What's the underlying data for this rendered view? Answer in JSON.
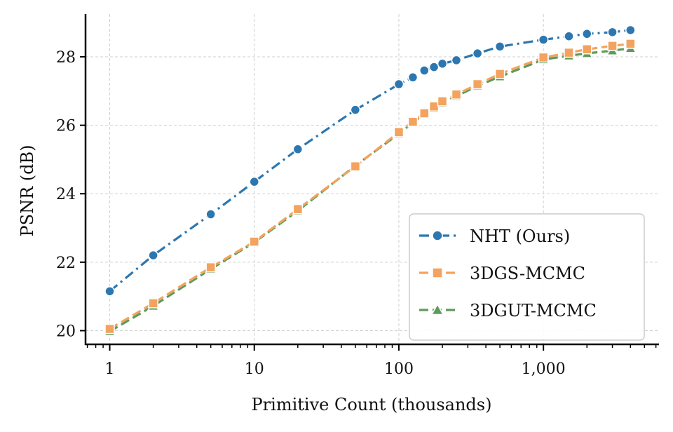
{
  "chart_data": {
    "type": "line",
    "title": "",
    "xlabel": "Primitive Count (thousands)",
    "ylabel": "PSNR (dB)",
    "xscale": "log",
    "xlim": [
      0.68,
      6300
    ],
    "ylim": [
      19.6,
      29.25
    ],
    "xticks": [
      {
        "value": 1,
        "label": "1"
      },
      {
        "value": 10,
        "label": "10"
      },
      {
        "value": 100,
        "label": "100"
      },
      {
        "value": 1000,
        "label": "1,000"
      }
    ],
    "yticks": [
      {
        "value": 20,
        "label": "20"
      },
      {
        "value": 22,
        "label": "22"
      },
      {
        "value": 24,
        "label": "24"
      },
      {
        "value": 26,
        "label": "26"
      },
      {
        "value": 28,
        "label": "28"
      }
    ],
    "grid": true,
    "legend_position": "lower-right",
    "series": [
      {
        "name": "NHT (Ours)",
        "color": "#2c77b0",
        "marker": "circle",
        "linestyle": "dash-dot",
        "points": [
          [
            1,
            21.15
          ],
          [
            2,
            22.2
          ],
          [
            5,
            23.4
          ],
          [
            10,
            24.35
          ],
          [
            20,
            25.3
          ],
          [
            50,
            26.45
          ],
          [
            100,
            27.2
          ],
          [
            125,
            27.4
          ],
          [
            150,
            27.6
          ],
          [
            175,
            27.7
          ],
          [
            200,
            27.8
          ],
          [
            250,
            27.9
          ],
          [
            350,
            28.1
          ],
          [
            500,
            28.3
          ],
          [
            1000,
            28.5
          ],
          [
            1500,
            28.6
          ],
          [
            2000,
            28.67
          ],
          [
            3000,
            28.72
          ],
          [
            4000,
            28.78
          ]
        ]
      },
      {
        "name": "3DGS-MCMC",
        "color": "#f3a35e",
        "marker": "square",
        "linestyle": "dashed",
        "points": [
          [
            1,
            20.05
          ],
          [
            2,
            20.8
          ],
          [
            5,
            21.85
          ],
          [
            10,
            22.6
          ],
          [
            20,
            23.55
          ],
          [
            50,
            24.8
          ],
          [
            100,
            25.8
          ],
          [
            125,
            26.1
          ],
          [
            150,
            26.35
          ],
          [
            175,
            26.55
          ],
          [
            200,
            26.7
          ],
          [
            250,
            26.9
          ],
          [
            350,
            27.2
          ],
          [
            500,
            27.5
          ],
          [
            1000,
            27.98
          ],
          [
            1500,
            28.12
          ],
          [
            2000,
            28.22
          ],
          [
            3000,
            28.32
          ],
          [
            4000,
            28.38
          ]
        ]
      },
      {
        "name": "3DGUT-MCMC",
        "color": "#5e9a5c",
        "marker": "triangle",
        "linestyle": "dashed",
        "points": [
          [
            1,
            19.98
          ],
          [
            2,
            20.72
          ],
          [
            5,
            21.8
          ],
          [
            10,
            22.58
          ],
          [
            20,
            23.5
          ],
          [
            50,
            24.82
          ],
          [
            100,
            25.75
          ],
          [
            125,
            26.08
          ],
          [
            150,
            26.33
          ],
          [
            175,
            26.5
          ],
          [
            200,
            26.65
          ],
          [
            250,
            26.85
          ],
          [
            350,
            27.15
          ],
          [
            500,
            27.42
          ],
          [
            1000,
            27.92
          ],
          [
            1500,
            28.03
          ],
          [
            2000,
            28.1
          ],
          [
            3000,
            28.18
          ],
          [
            4000,
            28.25
          ]
        ]
      }
    ]
  }
}
